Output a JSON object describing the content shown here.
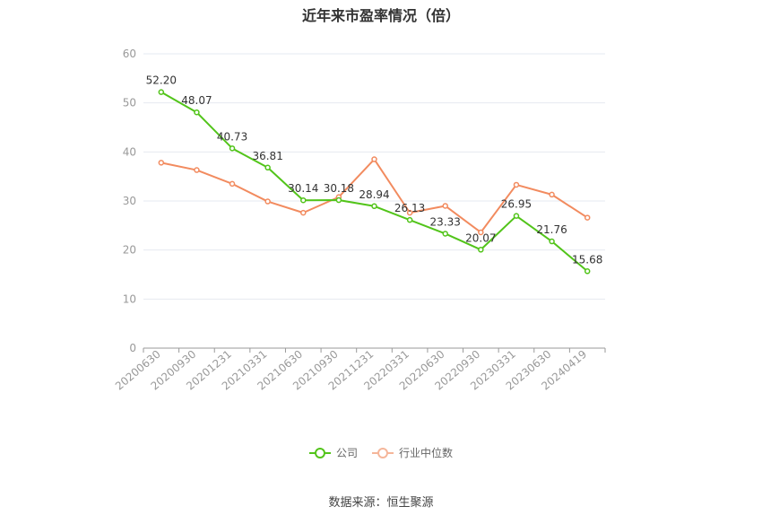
{
  "colors": {
    "company": "#52c41a",
    "industry": "#f28b5f",
    "grid": "#e6e9f0",
    "axis": "#999999"
  },
  "chart_data": {
    "type": "line",
    "title": "近年来市盈率情况（倍）",
    "categories": [
      "20200630",
      "20200930",
      "20201231",
      "20210331",
      "20210630",
      "20210930",
      "20211231",
      "20220331",
      "20220630",
      "20220930",
      "20230331",
      "20230630",
      "20240419"
    ],
    "ylim": [
      0,
      60
    ],
    "yticks": [
      0,
      10,
      20,
      30,
      40,
      50,
      60
    ],
    "grid": true,
    "legend_position": "bottom",
    "series": [
      {
        "name": "公司",
        "values": [
          52.2,
          48.07,
          40.73,
          36.81,
          30.14,
          30.18,
          28.94,
          26.13,
          23.33,
          20.07,
          26.95,
          21.76,
          15.68
        ],
        "labels": [
          "52.20",
          "48.07",
          "40.73",
          "36.81",
          "30.14",
          "30.18",
          "28.94",
          "26.13",
          "23.33",
          "20.07",
          "26.95",
          "21.76",
          "15.68"
        ]
      },
      {
        "name": "行业中位数",
        "values": [
          37.8,
          36.3,
          33.5,
          29.9,
          27.6,
          30.8,
          38.5,
          27.6,
          29.0,
          23.6,
          33.3,
          31.3,
          26.6
        ]
      }
    ]
  },
  "source": "数据来源：恒生聚源"
}
